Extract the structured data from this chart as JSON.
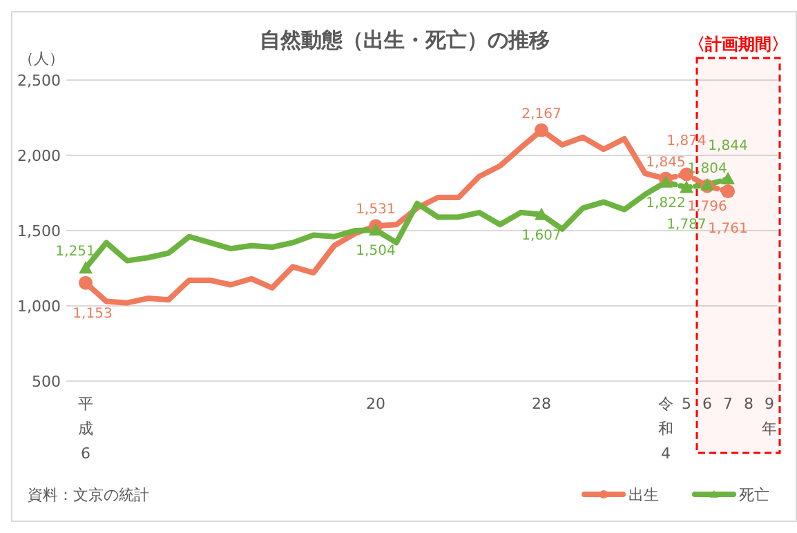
{
  "chart_data": {
    "type": "line",
    "title": "自然動態（出生・死亡）の推移",
    "ylabel": "（人）",
    "categories": [
      "平成6",
      null,
      null,
      null,
      null,
      null,
      null,
      null,
      null,
      null,
      null,
      null,
      null,
      null,
      "20",
      null,
      null,
      null,
      null,
      null,
      null,
      null,
      "28",
      null,
      null,
      null,
      null,
      null,
      "令和4",
      "5",
      "6",
      "7",
      "8",
      "9"
    ],
    "xlabel": "年",
    "ylim": [
      500,
      2500
    ],
    "yticks": [
      {
        "value": 500,
        "label": "500"
      },
      {
        "value": 1000,
        "label": "1,000"
      },
      {
        "value": 1500,
        "label": "1,500"
      },
      {
        "value": 2000,
        "label": "2,000"
      },
      {
        "value": 2500,
        "label": "2,500"
      }
    ],
    "grid": "y",
    "legend": "bottom right",
    "series": [
      {
        "name": "出生",
        "color": "#f07b5c",
        "line_style": "solid",
        "values": [
          1153,
          1030,
          1020,
          1050,
          1040,
          1170,
          1170,
          1140,
          1180,
          1120,
          1260,
          1220,
          1400,
          1480,
          1531,
          1540,
          1650,
          1720,
          1720,
          1860,
          1930,
          2050,
          2167,
          2070,
          2120,
          2040,
          2110,
          1880,
          1845,
          null,
          null,
          null,
          null,
          null
        ]
      },
      {
        "color": "#f07b5c",
        "line_style": "dashed",
        "values": [
          null,
          null,
          null,
          null,
          null,
          null,
          null,
          null,
          null,
          null,
          null,
          null,
          null,
          null,
          null,
          null,
          null,
          null,
          null,
          null,
          null,
          null,
          null,
          null,
          null,
          null,
          null,
          null,
          1845,
          1874,
          1796,
          1761,
          null,
          null
        ]
      },
      {
        "name": "死亡",
        "color": "#6cb33f",
        "line_style": "solid",
        "values": [
          1251,
          1420,
          1300,
          1320,
          1350,
          1460,
          1420,
          1380,
          1400,
          1390,
          1420,
          1470,
          1460,
          1500,
          1504,
          1420,
          1680,
          1590,
          1590,
          1620,
          1540,
          1620,
          1607,
          1510,
          1650,
          1690,
          1640,
          1740,
          1822,
          null,
          null,
          null,
          null,
          null
        ]
      },
      {
        "color": "#6cb33f",
        "line_style": "dashed",
        "values": [
          null,
          null,
          null,
          null,
          null,
          null,
          null,
          null,
          null,
          null,
          null,
          null,
          null,
          null,
          null,
          null,
          null,
          null,
          null,
          null,
          null,
          null,
          null,
          null,
          null,
          null,
          null,
          null,
          1822,
          1787,
          1804,
          1844,
          null,
          null
        ]
      },
      {
        "type": "scatter",
        "color": "#f07b5c",
        "marker": "circle",
        "values": [
          1153,
          null,
          null,
          null,
          null,
          null,
          null,
          null,
          null,
          null,
          null,
          null,
          null,
          null,
          1531,
          null,
          null,
          null,
          null,
          null,
          null,
          null,
          2167,
          null,
          null,
          null,
          null,
          null,
          1845,
          1874,
          1796,
          1761,
          null,
          null
        ],
        "value_labels": [
          "1,153",
          null,
          null,
          null,
          null,
          null,
          null,
          null,
          null,
          null,
          null,
          null,
          null,
          null,
          "1,531",
          null,
          null,
          null,
          null,
          null,
          null,
          null,
          "2,167",
          null,
          null,
          null,
          null,
          null,
          "1,845",
          "1,874",
          "1,796",
          "1,761",
          null,
          null
        ]
      },
      {
        "type": "scatter",
        "color": "#6cb33f",
        "marker": "triangle",
        "values": [
          1251,
          null,
          null,
          null,
          null,
          null,
          null,
          null,
          null,
          null,
          null,
          null,
          null,
          null,
          1504,
          null,
          null,
          null,
          null,
          null,
          null,
          null,
          1607,
          null,
          null,
          null,
          null,
          null,
          1822,
          1787,
          1804,
          1844,
          null,
          null
        ],
        "value_labels": [
          "1,251",
          null,
          null,
          null,
          null,
          null,
          null,
          null,
          null,
          null,
          null,
          null,
          null,
          null,
          "1,504",
          null,
          null,
          null,
          null,
          null,
          null,
          null,
          "1,607",
          null,
          null,
          null,
          null,
          null,
          "1,822",
          "1,787",
          "1,804",
          "1,844",
          null,
          null
        ]
      }
    ],
    "bands": [
      {
        "axis": "x",
        "from": "6",
        "to": "9",
        "label": "〈計画期間〉",
        "color": "#ff0000"
      }
    ],
    "annotations": [
      "資料：文京の統計"
    ]
  }
}
